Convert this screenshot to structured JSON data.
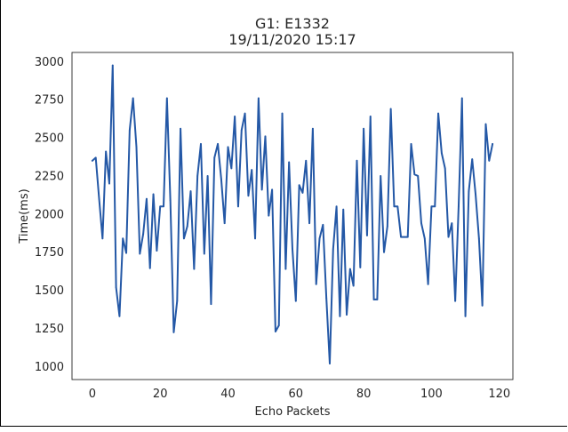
{
  "chart_data": {
    "type": "line",
    "title": "G1: E1332",
    "subtitle": "19/11/2020 15:17",
    "xlabel": "Echo Packets",
    "ylabel": "Time(ms)",
    "xlim": [
      -6,
      124
    ],
    "ylim": [
      915,
      3060
    ],
    "xticks": [
      0,
      20,
      40,
      60,
      80,
      100,
      120
    ],
    "yticks": [
      1000,
      1250,
      1500,
      1750,
      2000,
      2250,
      2500,
      2750,
      3000
    ],
    "grid": false,
    "series": [
      {
        "color": "#2458a6",
        "x": [
          0,
          1,
          2,
          3,
          4,
          5,
          6,
          7,
          8,
          9,
          10,
          11,
          12,
          13,
          14,
          15,
          16,
          17,
          18,
          19,
          20,
          21,
          22,
          23,
          24,
          25,
          26,
          27,
          28,
          29,
          30,
          31,
          32,
          33,
          34,
          35,
          36,
          37,
          38,
          39,
          40,
          41,
          42,
          43,
          44,
          45,
          46,
          47,
          48,
          49,
          50,
          51,
          52,
          53,
          54,
          55,
          56,
          57,
          58,
          59,
          60,
          61,
          62,
          63,
          64,
          65,
          66,
          67,
          68,
          69,
          70,
          71,
          72,
          73,
          74,
          75,
          76,
          77,
          78,
          79,
          80,
          81,
          82,
          83,
          84,
          85,
          86,
          87,
          88,
          89,
          90,
          91,
          92,
          93,
          94,
          95,
          96,
          97,
          98,
          99,
          100,
          101,
          102,
          103,
          104,
          105,
          106,
          107,
          108,
          109,
          110,
          111,
          112,
          113,
          114,
          115,
          116,
          117,
          118
        ],
        "values": [
          2350,
          2370,
          2100,
          1840,
          2410,
          2200,
          2975,
          1520,
          1330,
          1840,
          1745,
          2550,
          2760,
          2440,
          1740,
          1870,
          2100,
          1645,
          2130,
          1760,
          2050,
          2050,
          2760,
          2090,
          1225,
          1430,
          2560,
          1840,
          1920,
          2150,
          1640,
          2250,
          2460,
          1740,
          2250,
          1410,
          2370,
          2460,
          2230,
          1940,
          2440,
          2300,
          2640,
          2050,
          2550,
          2660,
          2120,
          2290,
          1840,
          2760,
          2160,
          2510,
          1990,
          2160,
          1230,
          1270,
          2660,
          1640,
          2340,
          1770,
          1430,
          2190,
          2140,
          2350,
          1940,
          2560,
          1540,
          1840,
          1930,
          1450,
          1020,
          1770,
          2050,
          1330,
          2030,
          1340,
          1640,
          1530,
          2350,
          1650,
          2560,
          1860,
          2640,
          1440,
          1440,
          2250,
          1750,
          1920,
          2690,
          2050,
          2050,
          1850,
          1850,
          1850,
          2460,
          2260,
          2250,
          1940,
          1840,
          1540,
          2050,
          2050,
          2660,
          2400,
          2300,
          1850,
          1940,
          1430,
          2050,
          2760,
          1330,
          2150,
          2360,
          2130,
          1840,
          1400,
          2590,
          2350,
          2460
        ]
      }
    ]
  }
}
